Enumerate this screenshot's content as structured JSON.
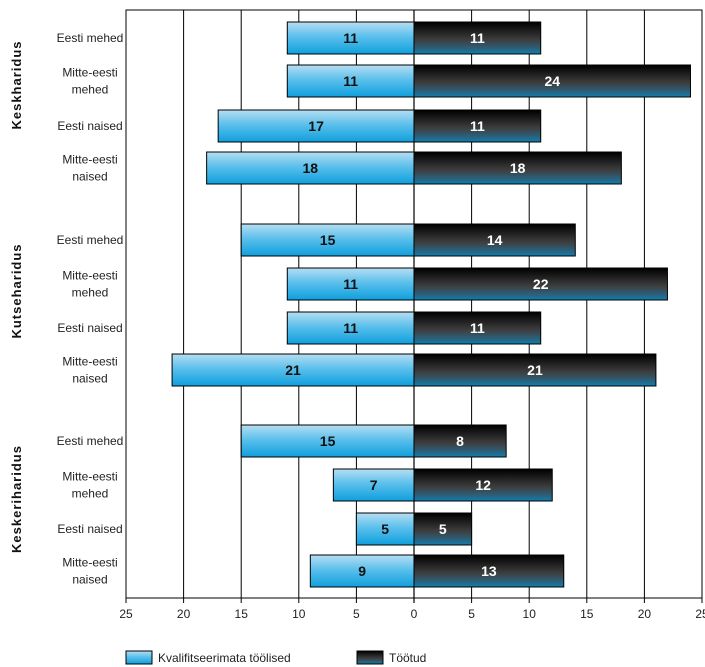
{
  "chart_data": {
    "type": "bar",
    "orientation": "horizontal-diverging",
    "x_axis": {
      "ticks": [
        25,
        20,
        15,
        10,
        5,
        0,
        5,
        10,
        15,
        20,
        25
      ],
      "range": [
        -25,
        25
      ]
    },
    "grid": true,
    "legend_position": "bottom-left",
    "series": [
      {
        "name": "Kvalifitseerimata töölised",
        "direction": "left",
        "color": "#29abe2"
      },
      {
        "name": "Töötud",
        "direction": "right",
        "color": "#1a1a1a"
      }
    ],
    "groups": [
      {
        "label": "Keskharidus",
        "rows": [
          {
            "category": [
              "Eesti mehed"
            ],
            "values": [
              11,
              11
            ]
          },
          {
            "category": [
              "Mitte-eesti",
              "mehed"
            ],
            "values": [
              11,
              24
            ]
          },
          {
            "category": [
              "Eesti naised"
            ],
            "values": [
              17,
              11
            ]
          },
          {
            "category": [
              "Mitte-eesti",
              "naised"
            ],
            "values": [
              18,
              18
            ]
          }
        ]
      },
      {
        "label": "Kutseharidus",
        "rows": [
          {
            "category": [
              "Eesti mehed"
            ],
            "values": [
              15,
              14
            ]
          },
          {
            "category": [
              "Mitte-eesti",
              "mehed"
            ],
            "values": [
              11,
              22
            ]
          },
          {
            "category": [
              "Eesti naised"
            ],
            "values": [
              11,
              11
            ]
          },
          {
            "category": [
              "Mitte-eesti",
              "naised"
            ],
            "values": [
              21,
              21
            ]
          }
        ]
      },
      {
        "label": "Keskeriharidus",
        "rows": [
          {
            "category": [
              "Eesti mehed"
            ],
            "values": [
              15,
              8
            ]
          },
          {
            "category": [
              "Mitte-eesti",
              "mehed"
            ],
            "values": [
              7,
              12
            ]
          },
          {
            "category": [
              "Eesti naised"
            ],
            "values": [
              5,
              5
            ]
          },
          {
            "category": [
              "Mitte-eesti",
              "naised"
            ],
            "values": [
              9,
              13
            ]
          }
        ]
      }
    ]
  }
}
